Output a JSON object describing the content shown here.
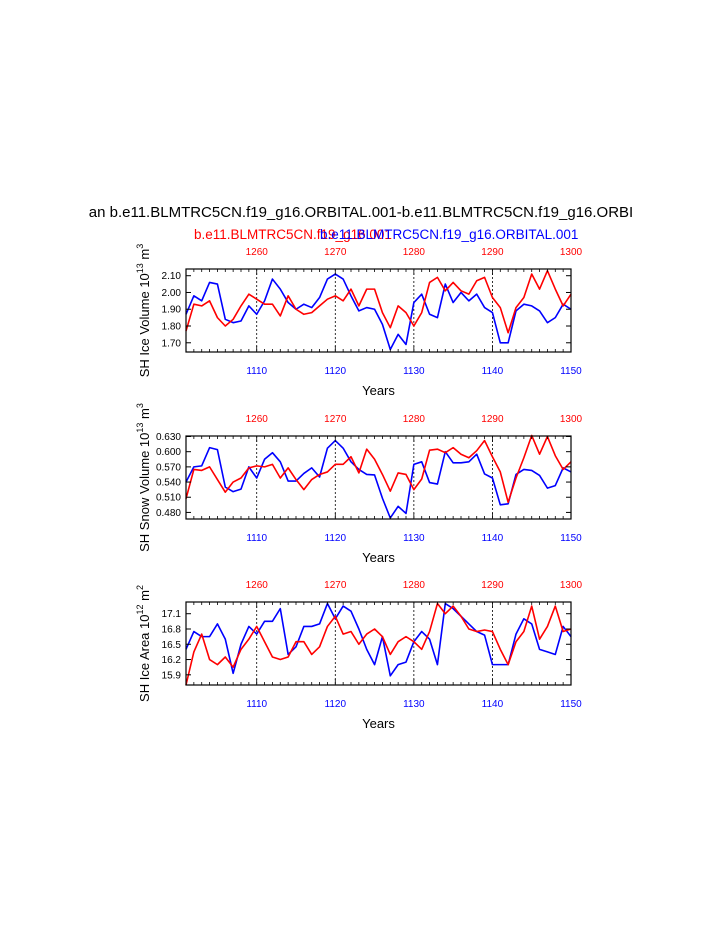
{
  "title": "an b.e11.BLMTRC5CN.f19_g16.ORBITAL.001-b.e11.BLMTRC5CN.f19_g16.ORBI",
  "legend": {
    "red_label": "b.e11.BLMTRC5CN.f19_g16.001",
    "blue_label": "b.e11.BLMTRC5CN.f19_g16.ORBITAL.001"
  },
  "colors": {
    "red": "#ff0000",
    "blue": "#0000ff",
    "axis": "#000000"
  },
  "chart_data": [
    {
      "type": "line",
      "id": "ice-volume",
      "ylabel": "SH Ice Volume 10",
      "ylabel_exp": "13",
      "ylabel_unit": " m",
      "ylabel_unit_exp": "3",
      "xlabel": "Years",
      "ylim": [
        1.645,
        2.14
      ],
      "yticks": [
        1.7,
        1.8,
        1.9,
        2.0,
        2.1
      ],
      "ytick_labels": [
        "1.70",
        "1.80",
        "1.90",
        "2.00",
        "2.10"
      ],
      "bottom_axis": {
        "range": [
          1101,
          1150
        ],
        "ticks": [
          1110,
          1120,
          1130,
          1140,
          1150
        ]
      },
      "top_axis": {
        "range": [
          1251,
          1300
        ],
        "ticks": [
          1260,
          1270,
          1280,
          1290,
          1300
        ]
      },
      "series": [
        {
          "name": "b.e11.BLMTRC5CN.f19_g16.ORBITAL.001",
          "color": "blue",
          "axis": "bottom",
          "x": [
            1101,
            1102,
            1103,
            1104,
            1105,
            1106,
            1107,
            1108,
            1109,
            1110,
            1111,
            1112,
            1113,
            1114,
            1115,
            1116,
            1117,
            1118,
            1119,
            1120,
            1121,
            1122,
            1123,
            1124,
            1125,
            1126,
            1127,
            1128,
            1129,
            1130,
            1131,
            1132,
            1133,
            1134,
            1135,
            1136,
            1137,
            1138,
            1139,
            1140,
            1141,
            1142,
            1143,
            1144,
            1145,
            1146,
            1147,
            1148,
            1149,
            1150
          ],
          "y": [
            1.87,
            1.98,
            1.95,
            2.06,
            2.05,
            1.84,
            1.82,
            1.83,
            1.92,
            1.87,
            1.95,
            2.08,
            2.02,
            1.94,
            1.9,
            1.93,
            1.91,
            1.97,
            2.08,
            2.11,
            2.08,
            1.98,
            1.89,
            1.91,
            1.9,
            1.81,
            1.66,
            1.75,
            1.69,
            1.94,
            1.99,
            1.87,
            1.85,
            2.05,
            1.94,
            2.0,
            1.95,
            1.99,
            1.91,
            1.88,
            1.7,
            1.7,
            1.89,
            1.93,
            1.92,
            1.89,
            1.82,
            1.85,
            1.93,
            1.9
          ]
        },
        {
          "name": "b.e11.BLMTRC5CN.f19_g16.001",
          "color": "red",
          "axis": "top",
          "x": [
            1251,
            1252,
            1253,
            1254,
            1255,
            1256,
            1257,
            1258,
            1259,
            1260,
            1261,
            1262,
            1263,
            1264,
            1265,
            1266,
            1267,
            1268,
            1269,
            1270,
            1271,
            1272,
            1273,
            1274,
            1275,
            1276,
            1277,
            1278,
            1279,
            1280,
            1281,
            1282,
            1283,
            1284,
            1285,
            1286,
            1287,
            1288,
            1289,
            1290,
            1291,
            1292,
            1293,
            1294,
            1295,
            1296,
            1297,
            1298,
            1299,
            1300
          ],
          "y": [
            1.77,
            1.93,
            1.92,
            1.95,
            1.85,
            1.8,
            1.84,
            1.92,
            1.99,
            1.96,
            1.93,
            1.93,
            1.86,
            1.98,
            1.9,
            1.87,
            1.88,
            1.92,
            1.96,
            1.98,
            1.95,
            2.02,
            1.92,
            2.02,
            2.02,
            1.88,
            1.79,
            1.92,
            1.88,
            1.8,
            1.88,
            2.06,
            2.09,
            2.01,
            2.06,
            2.01,
            1.99,
            2.07,
            2.09,
            1.97,
            1.91,
            1.76,
            1.91,
            1.97,
            2.11,
            2.02,
            2.13,
            2.02,
            1.92,
            1.99
          ]
        }
      ]
    },
    {
      "type": "line",
      "id": "snow-volume",
      "ylabel": "SH Snow Volume 10",
      "ylabel_exp": "13",
      "ylabel_unit": " m",
      "ylabel_unit_exp": "3",
      "xlabel": "Years",
      "ylim": [
        0.467,
        0.631
      ],
      "yticks": [
        0.48,
        0.51,
        0.54,
        0.57,
        0.6,
        0.63
      ],
      "ytick_labels": [
        "0.480",
        "0.510",
        "0.540",
        "0.570",
        "0.600",
        "0.630"
      ],
      "bottom_axis": {
        "range": [
          1101,
          1150
        ],
        "ticks": [
          1110,
          1120,
          1130,
          1140,
          1150
        ]
      },
      "top_axis": {
        "range": [
          1251,
          1300
        ],
        "ticks": [
          1260,
          1270,
          1280,
          1290,
          1300
        ]
      },
      "series": [
        {
          "name": "b.e11.BLMTRC5CN.f19_g16.ORBITAL.001",
          "color": "blue",
          "axis": "bottom",
          "x": [
            1101,
            1102,
            1103,
            1104,
            1105,
            1106,
            1107,
            1108,
            1109,
            1110,
            1111,
            1112,
            1113,
            1114,
            1115,
            1116,
            1117,
            1118,
            1119,
            1120,
            1121,
            1122,
            1123,
            1124,
            1125,
            1126,
            1127,
            1128,
            1129,
            1130,
            1131,
            1132,
            1133,
            1134,
            1135,
            1136,
            1137,
            1138,
            1139,
            1140,
            1141,
            1142,
            1143,
            1144,
            1145,
            1146,
            1147,
            1148,
            1149,
            1150
          ],
          "y": [
            0.54,
            0.57,
            0.572,
            0.608,
            0.604,
            0.53,
            0.521,
            0.526,
            0.57,
            0.548,
            0.585,
            0.598,
            0.58,
            0.542,
            0.542,
            0.557,
            0.568,
            0.55,
            0.607,
            0.622,
            0.607,
            0.58,
            0.565,
            0.555,
            0.554,
            0.508,
            0.469,
            0.492,
            0.478,
            0.575,
            0.58,
            0.539,
            0.536,
            0.6,
            0.578,
            0.578,
            0.58,
            0.595,
            0.556,
            0.548,
            0.495,
            0.497,
            0.555,
            0.565,
            0.563,
            0.553,
            0.528,
            0.533,
            0.568,
            0.56
          ]
        },
        {
          "name": "b.e11.BLMTRC5CN.f19_g16.001",
          "color": "red",
          "axis": "top",
          "x": [
            1251,
            1252,
            1253,
            1254,
            1255,
            1256,
            1257,
            1258,
            1259,
            1260,
            1261,
            1262,
            1263,
            1264,
            1265,
            1266,
            1267,
            1268,
            1269,
            1270,
            1271,
            1272,
            1273,
            1274,
            1275,
            1276,
            1277,
            1278,
            1279,
            1280,
            1281,
            1282,
            1283,
            1284,
            1285,
            1286,
            1287,
            1288,
            1289,
            1290,
            1291,
            1292,
            1293,
            1294,
            1295,
            1296,
            1297,
            1298,
            1299,
            1300
          ],
          "y": [
            0.507,
            0.565,
            0.563,
            0.57,
            0.545,
            0.52,
            0.54,
            0.548,
            0.568,
            0.572,
            0.57,
            0.575,
            0.548,
            0.568,
            0.545,
            0.525,
            0.545,
            0.555,
            0.56,
            0.575,
            0.575,
            0.59,
            0.558,
            0.605,
            0.585,
            0.555,
            0.522,
            0.558,
            0.555,
            0.525,
            0.546,
            0.603,
            0.605,
            0.598,
            0.608,
            0.595,
            0.588,
            0.602,
            0.622,
            0.59,
            0.56,
            0.5,
            0.548,
            0.588,
            0.632,
            0.595,
            0.63,
            0.592,
            0.565,
            0.58
          ]
        }
      ]
    },
    {
      "type": "line",
      "id": "ice-area",
      "ylabel": "SH Ice Area 10",
      "ylabel_exp": "12",
      "ylabel_unit": " m",
      "ylabel_unit_exp": "2",
      "xlabel": "Years",
      "ylim": [
        15.7,
        17.33
      ],
      "yticks": [
        15.9,
        16.2,
        16.5,
        16.8,
        17.1
      ],
      "ytick_labels": [
        "15.9",
        "16.2",
        "16.5",
        "16.8",
        "17.1"
      ],
      "bottom_axis": {
        "range": [
          1101,
          1150
        ],
        "ticks": [
          1110,
          1120,
          1130,
          1140,
          1150
        ]
      },
      "top_axis": {
        "range": [
          1251,
          1300
        ],
        "ticks": [
          1260,
          1270,
          1280,
          1290,
          1300
        ]
      },
      "series": [
        {
          "name": "b.e11.BLMTRC5CN.f19_g16.ORBITAL.001",
          "color": "blue",
          "axis": "bottom",
          "x": [
            1101,
            1102,
            1103,
            1104,
            1105,
            1106,
            1107,
            1108,
            1109,
            1110,
            1111,
            1112,
            1113,
            1114,
            1115,
            1116,
            1117,
            1118,
            1119,
            1120,
            1121,
            1122,
            1123,
            1124,
            1125,
            1126,
            1127,
            1128,
            1129,
            1130,
            1131,
            1132,
            1133,
            1134,
            1135,
            1136,
            1137,
            1138,
            1139,
            1140,
            1141,
            1142,
            1143,
            1144,
            1145,
            1146,
            1147,
            1148,
            1149,
            1150
          ],
          "y": [
            16.4,
            16.75,
            16.65,
            16.65,
            16.9,
            16.6,
            15.93,
            16.5,
            16.85,
            16.7,
            16.95,
            16.95,
            17.2,
            16.3,
            16.45,
            16.85,
            16.85,
            16.9,
            17.3,
            17.0,
            17.25,
            17.15,
            16.8,
            16.4,
            16.1,
            16.65,
            15.88,
            16.1,
            16.15,
            16.55,
            16.75,
            16.6,
            16.1,
            17.3,
            17.2,
            17.05,
            16.9,
            16.75,
            16.68,
            16.1,
            16.1,
            16.1,
            16.7,
            17.0,
            16.9,
            16.4,
            16.35,
            16.3,
            16.85,
            16.65
          ]
        },
        {
          "name": "b.e11.BLMTRC5CN.f19_g16.001",
          "color": "red",
          "axis": "top",
          "x": [
            1251,
            1252,
            1253,
            1254,
            1255,
            1256,
            1257,
            1258,
            1259,
            1260,
            1261,
            1262,
            1263,
            1264,
            1265,
            1266,
            1267,
            1268,
            1269,
            1270,
            1271,
            1272,
            1273,
            1274,
            1275,
            1276,
            1277,
            1278,
            1279,
            1280,
            1281,
            1282,
            1283,
            1284,
            1285,
            1286,
            1287,
            1288,
            1289,
            1290,
            1291,
            1292,
            1293,
            1294,
            1295,
            1296,
            1297,
            1298,
            1299,
            1300
          ],
          "y": [
            15.7,
            16.35,
            16.7,
            16.2,
            16.1,
            16.25,
            16.05,
            16.4,
            16.6,
            16.85,
            16.55,
            16.25,
            16.2,
            16.25,
            16.55,
            16.55,
            16.3,
            16.45,
            16.85,
            17.05,
            16.7,
            16.75,
            16.5,
            16.7,
            16.8,
            16.65,
            16.3,
            16.55,
            16.65,
            16.55,
            16.4,
            16.75,
            17.3,
            17.1,
            17.25,
            17.05,
            16.8,
            16.75,
            16.78,
            16.75,
            16.4,
            16.1,
            16.55,
            16.75,
            17.25,
            16.6,
            16.85,
            17.25,
            16.75,
            16.8
          ]
        }
      ]
    }
  ]
}
